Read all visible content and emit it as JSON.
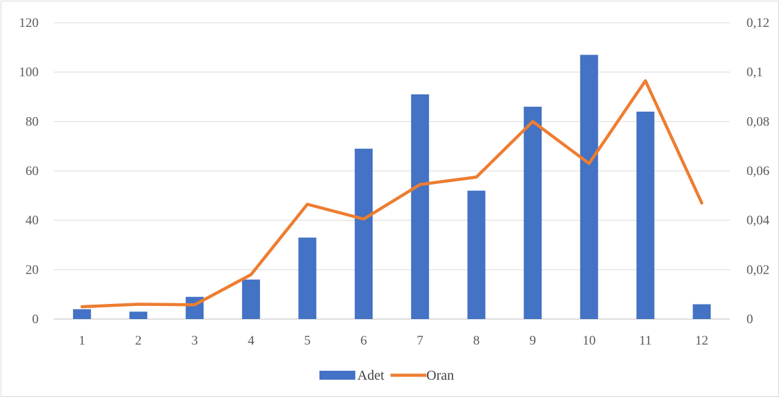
{
  "chart_data": {
    "type": "bar",
    "categories": [
      "1",
      "2",
      "3",
      "4",
      "5",
      "6",
      "7",
      "8",
      "9",
      "10",
      "11",
      "12"
    ],
    "series": [
      {
        "name": "Adet",
        "type": "bar",
        "axis": "left",
        "color": "#4472C4",
        "values": [
          4,
          3,
          9,
          16,
          33,
          69,
          91,
          52,
          86,
          107,
          84,
          6
        ]
      },
      {
        "name": "Oran",
        "type": "line",
        "axis": "right",
        "color": "#ED7D31",
        "values": [
          0.005,
          0.006,
          0.0058,
          0.018,
          0.0465,
          0.0405,
          0.0545,
          0.0575,
          0.08,
          0.063,
          0.0965,
          0.047
        ]
      }
    ],
    "y_left": {
      "min": 0,
      "max": 120,
      "ticks": [
        "0",
        "20",
        "40",
        "60",
        "80",
        "100",
        "120"
      ]
    },
    "y_right": {
      "min": 0,
      "max": 0.12,
      "ticks": [
        "0",
        "0,02",
        "0,04",
        "0,06",
        "0,08",
        "0,1",
        "0,12"
      ]
    },
    "grid": true,
    "legend_position": "bottom"
  }
}
